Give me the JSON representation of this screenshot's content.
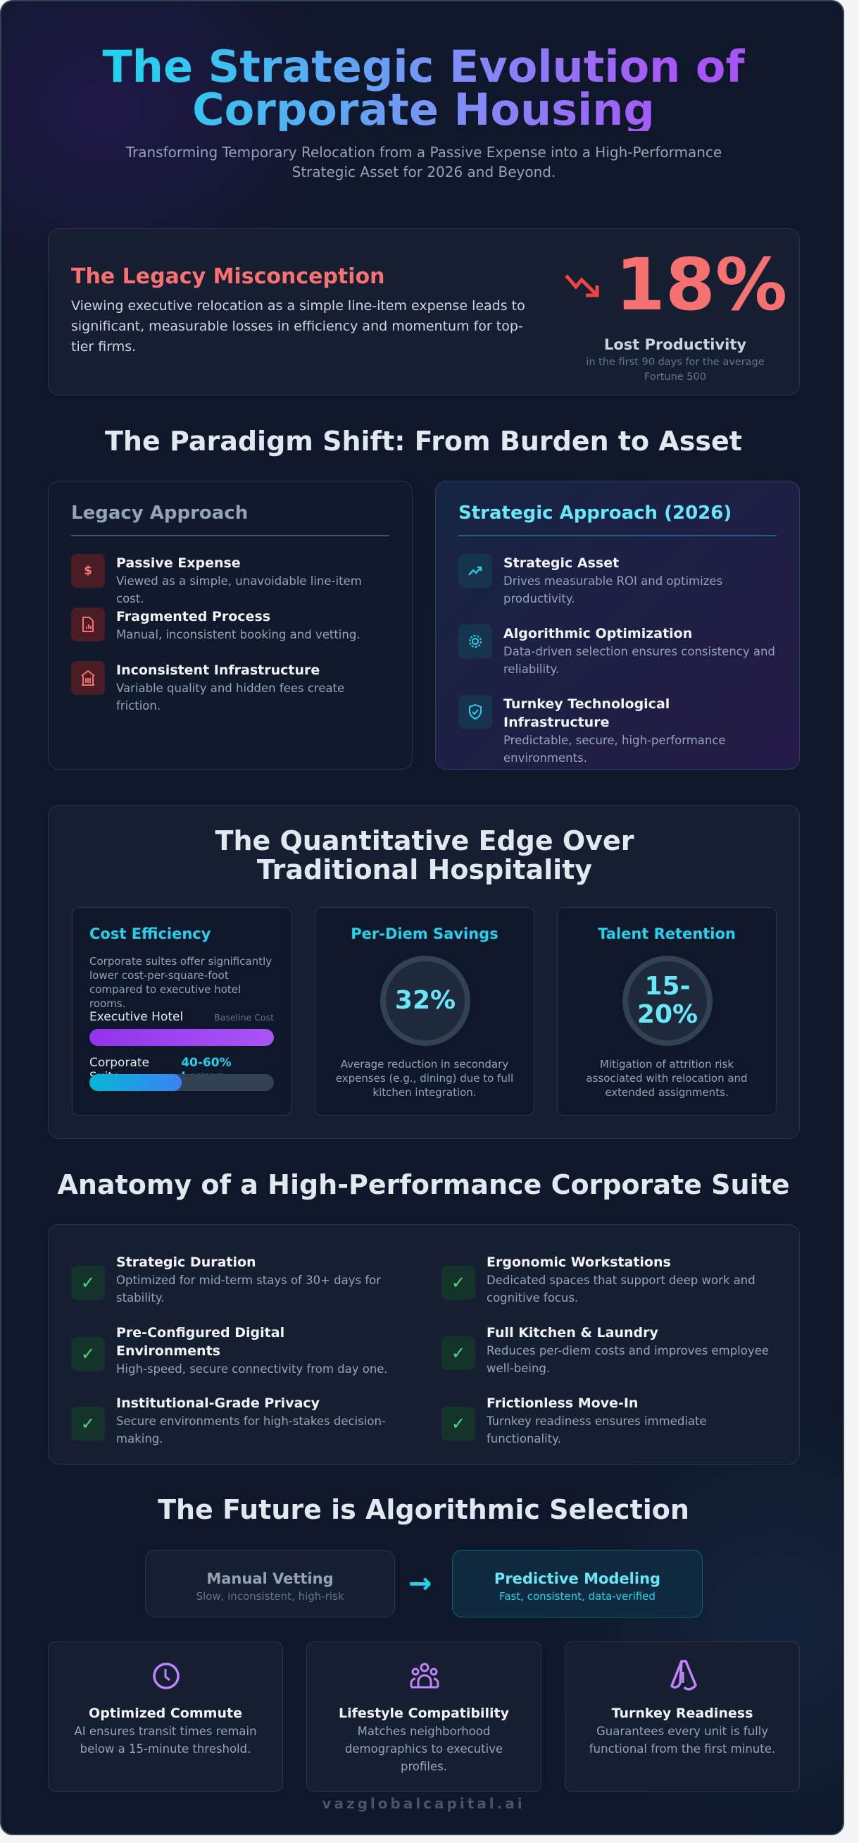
{
  "header": {
    "title_line1": "The Strategic Evolution of",
    "title_line2": "Corporate Housing",
    "subtitle": "Transforming Temporary Relocation from a Passive Expense into a High-Performance Strategic Asset for 2026 and Beyond."
  },
  "legacy": {
    "title": "The Legacy Misconception",
    "body": "Viewing executive relocation as a simple line-item expense leads to significant, measurable losses in efficiency and momentum for top-tier firms.",
    "stat_value": "18%",
    "stat_label": "Lost Productivity",
    "stat_note": "in the first 90 days for the average Fortune 500"
  },
  "paradigm": {
    "heading": "The Paradigm Shift: From Burden to Asset",
    "legacy": {
      "title": "Legacy Approach",
      "items": [
        {
          "icon": "dollar-icon",
          "title": "Passive Expense",
          "desc": "Viewed as a simple, unavoidable line-item cost."
        },
        {
          "icon": "document-chart-icon",
          "title": "Fragmented Process",
          "desc": "Manual, inconsistent booking and vetting."
        },
        {
          "icon": "building-icon",
          "title": "Inconsistent Infrastructure",
          "desc": "Variable quality and hidden fees create friction."
        }
      ]
    },
    "strategic": {
      "title": "Strategic Approach (2026)",
      "items": [
        {
          "icon": "trending-up-icon",
          "title": "Strategic Asset",
          "desc": "Drives measurable ROI and optimizes productivity."
        },
        {
          "icon": "cpu-icon",
          "title": "Algorithmic Optimization",
          "desc": "Data-driven selection ensures consistency and reliability."
        },
        {
          "icon": "shield-check-icon",
          "title": "Turnkey Technological Infrastructure",
          "desc": "Predictable, secure, high-performance environments."
        }
      ]
    }
  },
  "quant": {
    "heading": "The Quantitative Edge Over Traditional Hospitality",
    "cost": {
      "title": "Cost Efficiency",
      "desc": "Corporate suites offer significantly lower cost-per-square-foot compared to executive hotel rooms.",
      "hotel_label": "Executive Hotel",
      "hotel_note": "Baseline Cost",
      "hotel_fill": 1.0,
      "suite_label": "Corporate Suite",
      "suite_note": "40-60% Lower",
      "suite_fill": 0.5
    },
    "perdiem": {
      "title": "Per-Diem Savings",
      "value": "32%",
      "desc": "Average reduction in secondary expenses (e.g., dining) due to full kitchen integration."
    },
    "talent": {
      "title": "Talent Retention",
      "value": "15-20%",
      "desc": "Mitigation of attrition risk associated with relocation and extended assignments."
    }
  },
  "anatomy": {
    "heading": "Anatomy of a High-Performance Corporate Suite",
    "items": [
      {
        "title": "Strategic Duration",
        "desc": "Optimized for mid-term stays of 30+ days for stability."
      },
      {
        "title": "Ergonomic Workstations",
        "desc": "Dedicated spaces that support deep work and cognitive focus."
      },
      {
        "title": "Pre-Configured Digital Environments",
        "desc": "High-speed, secure connectivity from day one."
      },
      {
        "title": "Full Kitchen & Laundry",
        "desc": "Reduces per-diem costs and improves employee well-being."
      },
      {
        "title": "Institutional-Grade Privacy",
        "desc": "Secure environments for high-stakes decision-making."
      },
      {
        "title": "Frictionless Move-In",
        "desc": "Turnkey readiness ensures immediate functionality."
      }
    ]
  },
  "future": {
    "heading": "The Future is Algorithmic Selection",
    "from": {
      "title": "Manual Vetting",
      "desc": "Slow, inconsistent, high-risk"
    },
    "to": {
      "title": "Predictive Modeling",
      "desc": "Fast, consistent, data-verified"
    },
    "cards": [
      {
        "icon": "clock-icon",
        "title": "Optimized Commute",
        "desc": "AI ensures transit times remain below a 15-minute threshold."
      },
      {
        "icon": "people-icon",
        "title": "Lifestyle Compatibility",
        "desc": "Matches neighborhood demographics to executive profiles."
      },
      {
        "icon": "rocket-icon",
        "title": "Turnkey Readiness",
        "desc": "Guarantees every unit is fully functional from the first minute."
      }
    ]
  },
  "footer": {
    "brand": "vazglobalcapital.ai"
  },
  "colors": {
    "red": "#f87171",
    "cyan": "#22d3ee",
    "purple": "#a855f7",
    "green": "#4ade80",
    "bg": "#0f172a"
  }
}
